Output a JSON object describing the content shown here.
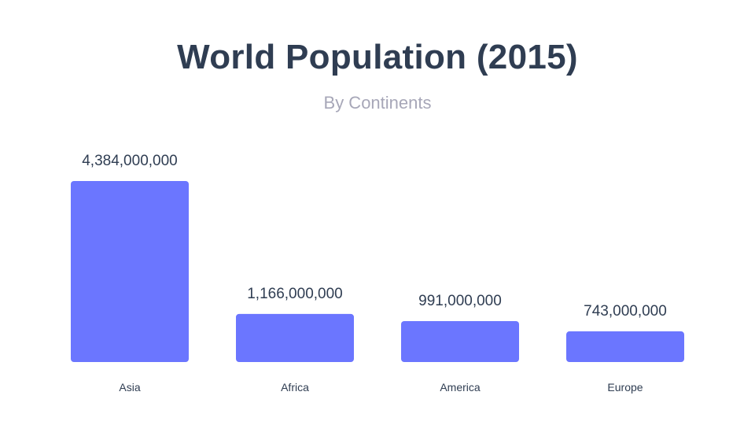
{
  "header": {
    "title": "World Population (2015)",
    "subtitle": "By Continents"
  },
  "colors": {
    "bar": "#6b76ff",
    "title": "#2f3d52",
    "subtitle": "#a7a7b8"
  },
  "chart_data": {
    "type": "bar",
    "title": "World Population (2015)",
    "subtitle": "By Continents",
    "categories": [
      "Asia",
      "Africa",
      "America",
      "Europe"
    ],
    "values": [
      4384000000,
      1166000000,
      991000000,
      743000000
    ],
    "value_labels": [
      "4,384,000,000",
      "1,166,000,000",
      "991,000,000",
      "743,000,000"
    ],
    "xlabel": "",
    "ylabel": "",
    "ylim": [
      0,
      4384000000
    ],
    "grid": false,
    "legend": "none"
  }
}
